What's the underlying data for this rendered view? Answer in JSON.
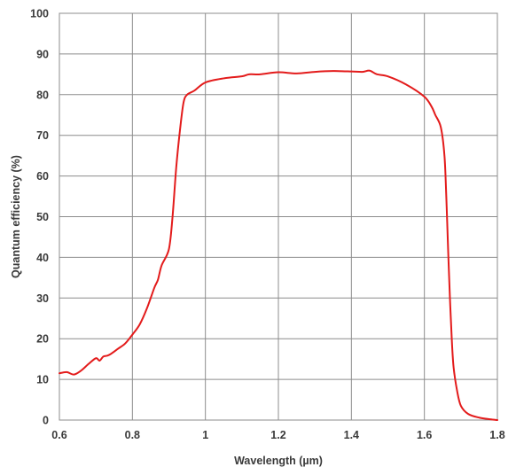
{
  "chart_data": {
    "type": "line",
    "title": "",
    "xlabel": "Wavelength (µm)",
    "ylabel": "Quantum efficiency (%)",
    "xlim": [
      0.6,
      1.8
    ],
    "ylim": [
      0,
      100
    ],
    "xticks": [
      0.6,
      0.8,
      1.0,
      1.2,
      1.4,
      1.6,
      1.8
    ],
    "xtick_labels": [
      "0.6",
      "0.8",
      "1",
      "1.2",
      "1.4",
      "1.6",
      "1.8"
    ],
    "yticks": [
      0,
      10,
      20,
      30,
      40,
      50,
      60,
      70,
      80,
      90,
      100
    ],
    "ytick_labels": [
      "0",
      "10",
      "20",
      "30",
      "40",
      "50",
      "60",
      "70",
      "80",
      "90",
      "100"
    ],
    "grid": true,
    "legend": "none",
    "series": [
      {
        "color": "#e31b1b",
        "x": [
          0.6,
          0.62,
          0.64,
          0.66,
          0.68,
          0.7,
          0.71,
          0.72,
          0.73,
          0.74,
          0.76,
          0.78,
          0.8,
          0.82,
          0.84,
          0.86,
          0.87,
          0.88,
          0.9,
          0.91,
          0.92,
          0.93,
          0.94,
          0.95,
          0.97,
          1.0,
          1.05,
          1.1,
          1.12,
          1.15,
          1.2,
          1.25,
          1.3,
          1.35,
          1.4,
          1.43,
          1.45,
          1.47,
          1.5,
          1.55,
          1.6,
          1.62,
          1.63,
          1.645,
          1.655,
          1.66,
          1.665,
          1.67,
          1.675,
          1.68,
          1.69,
          1.7,
          1.72,
          1.75,
          1.78,
          1.8
        ],
        "values": [
          11.5,
          11.8,
          11.2,
          12.2,
          13.8,
          15.2,
          14.6,
          15.6,
          15.8,
          16.2,
          17.5,
          18.8,
          21.0,
          23.5,
          27.5,
          32.5,
          34.5,
          38.0,
          42.0,
          50.0,
          62.0,
          71.0,
          78.0,
          80.0,
          81.0,
          83.0,
          84.0,
          84.5,
          85.0,
          85.0,
          85.5,
          85.2,
          85.6,
          85.8,
          85.7,
          85.6,
          85.9,
          85.0,
          84.5,
          82.5,
          79.5,
          77.0,
          75.0,
          72.0,
          65.0,
          55.0,
          42.0,
          30.0,
          20.0,
          13.0,
          7.0,
          3.5,
          1.5,
          0.6,
          0.2,
          0.0
        ]
      }
    ]
  }
}
